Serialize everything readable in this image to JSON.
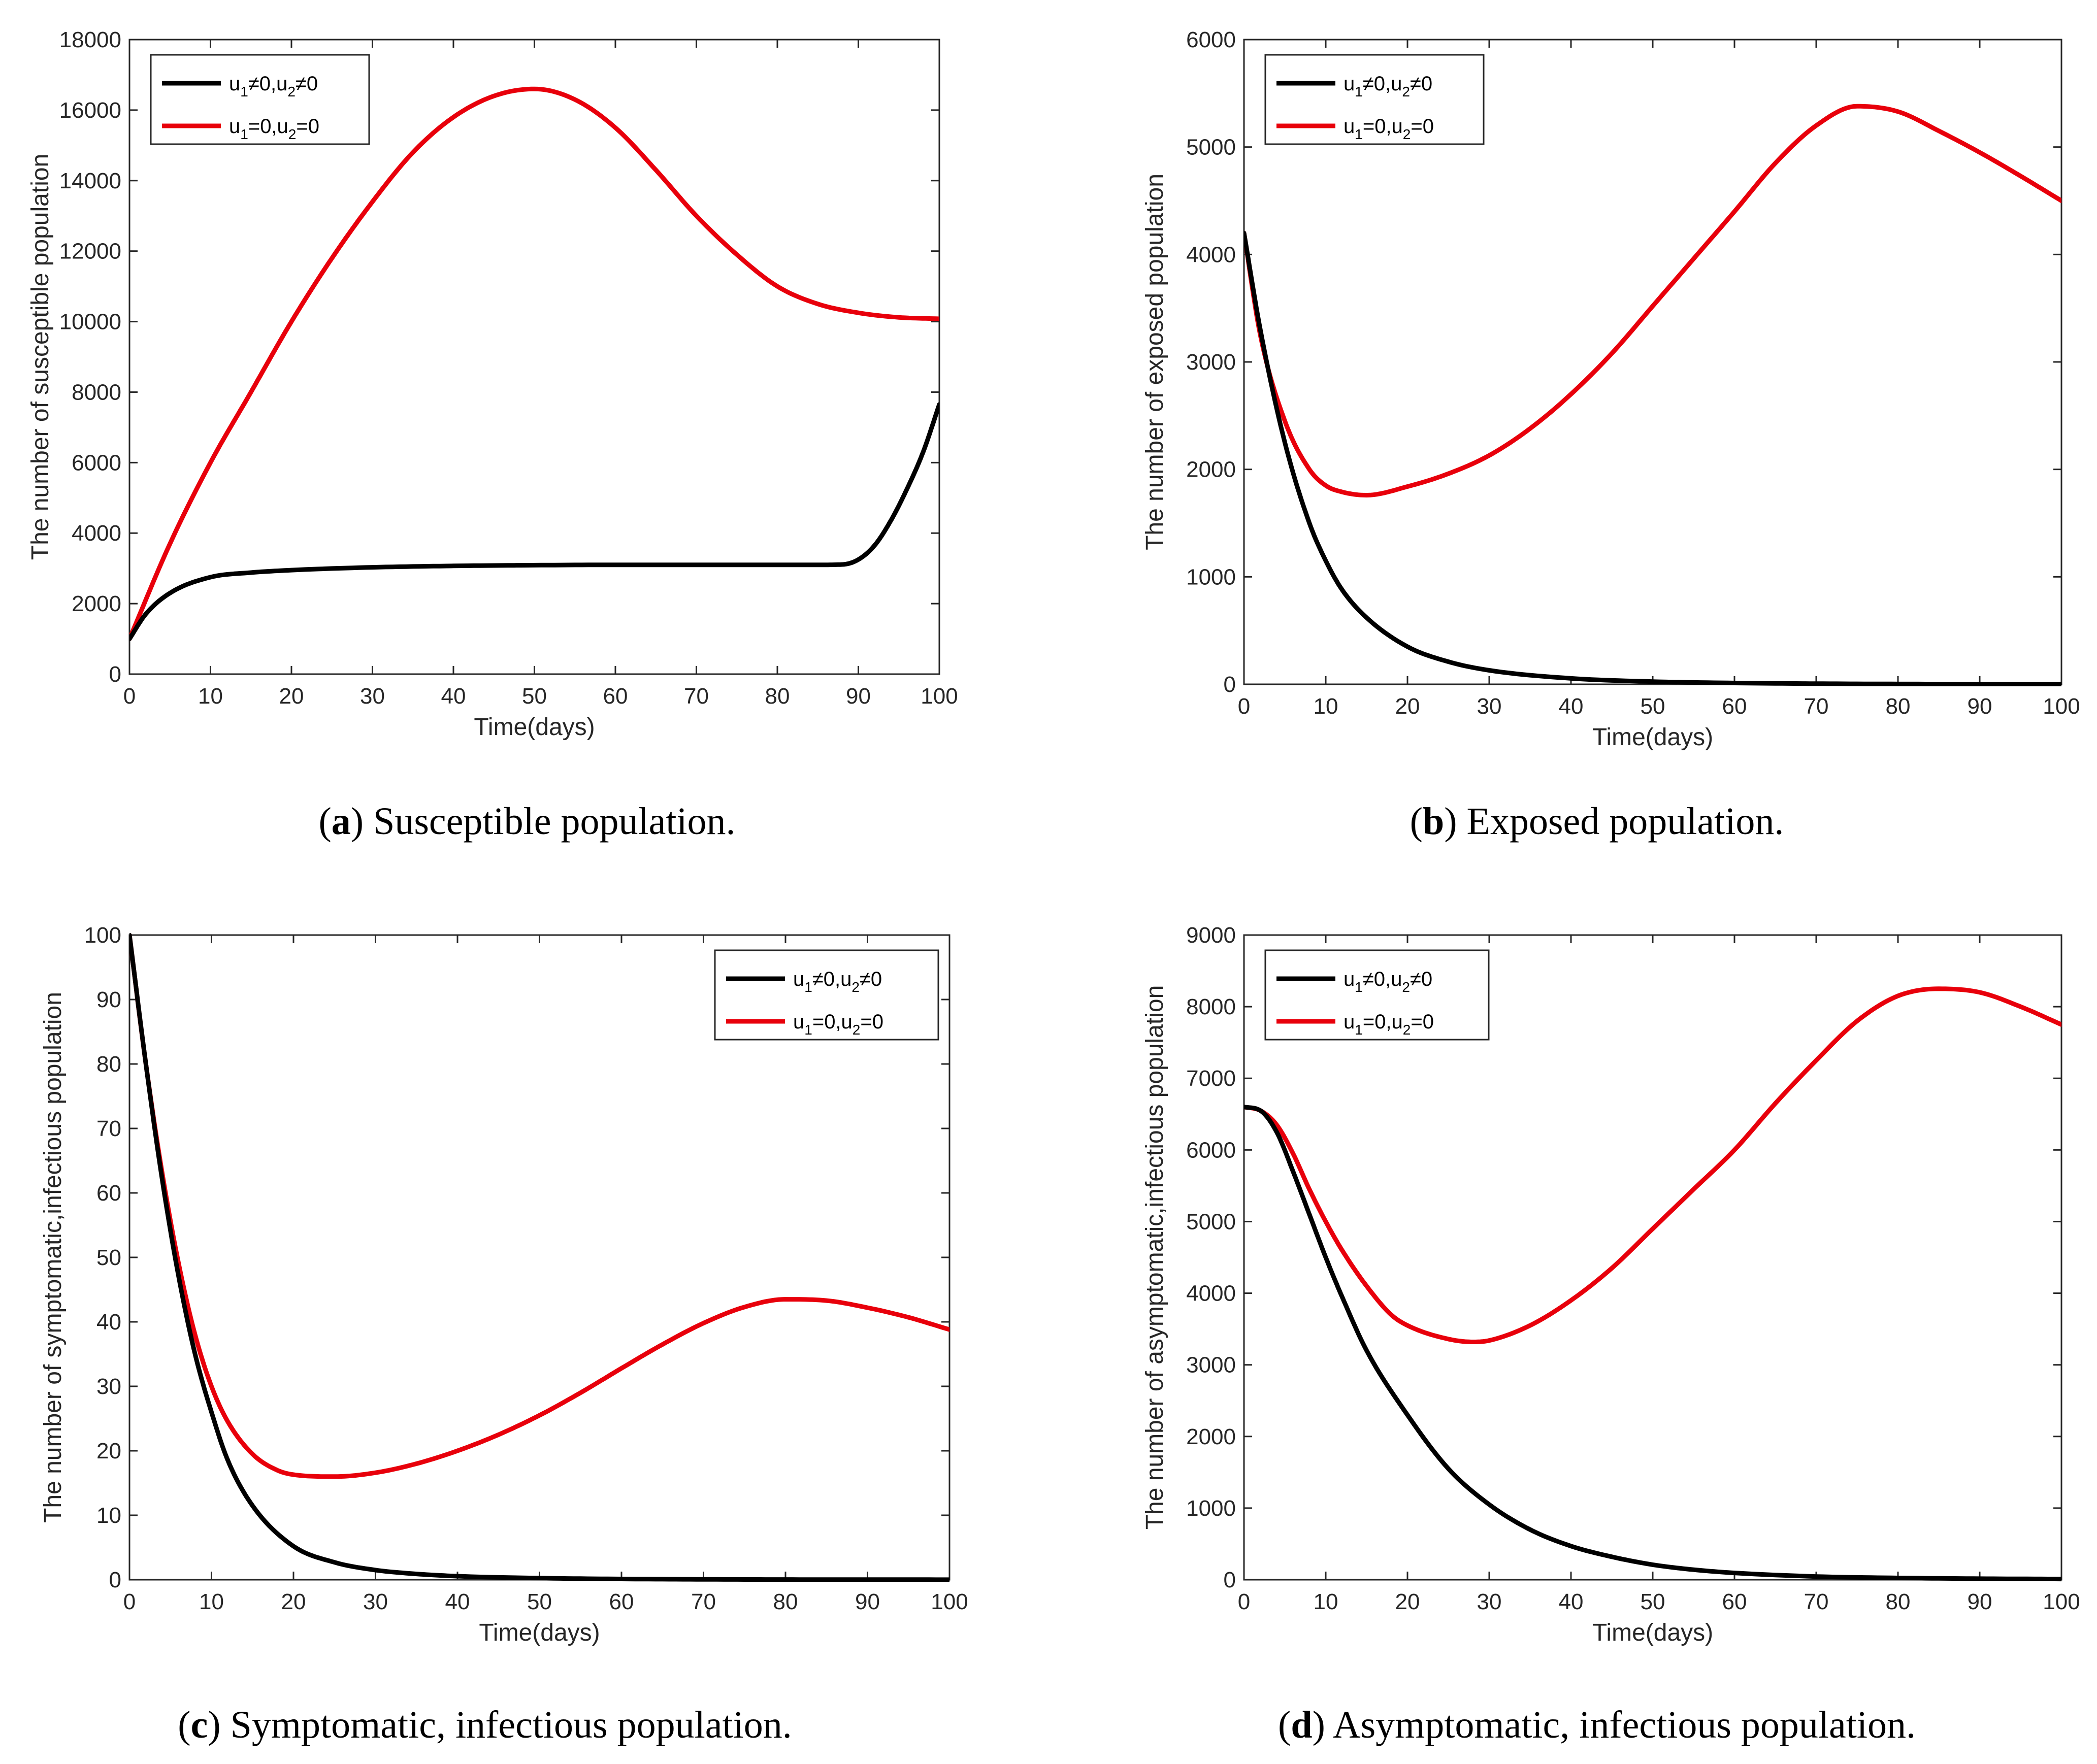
{
  "colors": {
    "controlled": "#000000",
    "uncontrolled": "#e8000b",
    "axis": "#262626"
  },
  "legend_entries": [
    {
      "key": "controlled",
      "u1": "u",
      "s1": "1",
      "op1": "≠",
      "v1": "0,",
      "u2": "u",
      "s2": "2",
      "op2": "≠",
      "v2": "0"
    },
    {
      "key": "uncontrolled",
      "u1": "u",
      "s1": "1",
      "op1": "=",
      "v1": "0,",
      "u2": "u",
      "s2": "2",
      "op2": "=",
      "v2": "0"
    }
  ],
  "chart_data": [
    {
      "id": "a",
      "type": "line",
      "caption_letter": "a",
      "caption_text": "Susceptible population.",
      "xlabel": "Time(days)",
      "ylabel": "The number of susceptible population",
      "xlim": [
        0,
        100
      ],
      "ylim": [
        0,
        18000
      ],
      "xticks": [
        0,
        10,
        20,
        30,
        40,
        50,
        60,
        70,
        80,
        90,
        100
      ],
      "yticks": [
        0,
        2000,
        4000,
        6000,
        8000,
        10000,
        12000,
        14000,
        16000,
        18000
      ],
      "legend_position": "top-left",
      "series": [
        {
          "name": "u1≠0,u2≠0",
          "key": "controlled",
          "x": [
            0,
            2,
            5,
            10,
            15,
            20,
            30,
            40,
            50,
            60,
            70,
            80,
            85,
            88,
            90,
            92,
            94,
            96,
            98,
            100
          ],
          "y": [
            1000,
            1700,
            2300,
            2750,
            2880,
            2950,
            3030,
            3070,
            3090,
            3100,
            3100,
            3100,
            3100,
            3110,
            3250,
            3650,
            4350,
            5250,
            6300,
            7650
          ]
        },
        {
          "name": "u1=0,u2=0",
          "key": "uncontrolled",
          "x": [
            0,
            5,
            10,
            15,
            20,
            25,
            30,
            35,
            40,
            45,
            50,
            55,
            60,
            65,
            70,
            75,
            80,
            85,
            90,
            95,
            100
          ],
          "y": [
            1000,
            3700,
            6000,
            8000,
            10000,
            11800,
            13400,
            14800,
            15800,
            16400,
            16600,
            16300,
            15500,
            14300,
            13000,
            11900,
            11000,
            10500,
            10250,
            10120,
            10080
          ]
        }
      ]
    },
    {
      "id": "b",
      "type": "line",
      "caption_letter": "b",
      "caption_text": "Exposed population.",
      "xlabel": "Time(days)",
      "ylabel": "The number of exposed population",
      "xlim": [
        0,
        100
      ],
      "ylim": [
        0,
        6000
      ],
      "xticks": [
        0,
        10,
        20,
        30,
        40,
        50,
        60,
        70,
        80,
        90,
        100
      ],
      "yticks": [
        0,
        1000,
        2000,
        3000,
        4000,
        5000,
        6000
      ],
      "legend_position": "top-left",
      "series": [
        {
          "name": "u1≠0,u2≠0",
          "key": "controlled",
          "x": [
            0,
            2,
            5,
            8,
            10,
            12,
            15,
            20,
            25,
            30,
            40,
            50,
            60,
            70,
            80,
            90,
            100
          ],
          "y": [
            4200,
            3300,
            2250,
            1500,
            1150,
            880,
            620,
            350,
            210,
            130,
            55,
            25,
            12,
            6,
            3,
            2,
            1
          ]
        },
        {
          "name": "u1=0,u2=0",
          "key": "uncontrolled",
          "x": [
            0,
            2,
            5,
            8,
            10,
            12,
            15,
            20,
            25,
            30,
            35,
            40,
            45,
            50,
            55,
            60,
            65,
            70,
            75,
            80,
            85,
            90,
            95,
            100
          ],
          "y": [
            4200,
            3250,
            2450,
            2000,
            1850,
            1790,
            1760,
            1840,
            1960,
            2130,
            2380,
            2700,
            3080,
            3520,
            3960,
            4400,
            4850,
            5200,
            5380,
            5330,
            5150,
            4950,
            4730,
            4500
          ]
        }
      ]
    },
    {
      "id": "c",
      "type": "line",
      "caption_letter": "c",
      "caption_text": "Symptomatic, infectious population.",
      "xlabel": "Time(days)",
      "ylabel": "The number of symptomatic,infectious population",
      "xlim": [
        0,
        100
      ],
      "ylim": [
        0,
        100
      ],
      "xticks": [
        0,
        10,
        20,
        30,
        40,
        50,
        60,
        70,
        80,
        90,
        100
      ],
      "yticks": [
        0,
        10,
        20,
        30,
        40,
        50,
        60,
        70,
        80,
        90,
        100
      ],
      "legend_position": "top-right",
      "series": [
        {
          "name": "u1≠0,u2≠0",
          "key": "controlled",
          "x": [
            0,
            2,
            4,
            6,
            8,
            10,
            12,
            15,
            20,
            25,
            30,
            35,
            40,
            50,
            60,
            70,
            80,
            90,
            100
          ],
          "y": [
            100,
            80,
            62,
            47,
            35,
            26,
            18.5,
            11.5,
            5.2,
            2.7,
            1.5,
            0.9,
            0.55,
            0.25,
            0.12,
            0.06,
            0.03,
            0.02,
            0.01
          ]
        },
        {
          "name": "u1=0,u2=0",
          "key": "uncontrolled",
          "x": [
            0,
            2,
            4,
            6,
            8,
            10,
            12,
            15,
            18,
            20,
            25,
            30,
            35,
            40,
            45,
            50,
            55,
            60,
            65,
            70,
            75,
            80,
            85,
            90,
            95,
            100
          ],
          "y": [
            100,
            80,
            63,
            49,
            38,
            30,
            24.5,
            19.5,
            17,
            16.3,
            16,
            16.6,
            18,
            20,
            22.5,
            25.5,
            29,
            32.8,
            36.5,
            39.8,
            42.3,
            43.5,
            43.3,
            42.2,
            40.7,
            38.8
          ]
        }
      ]
    },
    {
      "id": "d",
      "type": "line",
      "caption_letter": "d",
      "caption_text": "Asymptomatic, infectious population.",
      "xlabel": "Time(days)",
      "ylabel": "The number of asymptomatic,infectious population",
      "xlim": [
        0,
        100
      ],
      "ylim": [
        0,
        9000
      ],
      "xticks": [
        0,
        10,
        20,
        30,
        40,
        50,
        60,
        70,
        80,
        90,
        100
      ],
      "yticks": [
        0,
        1000,
        2000,
        3000,
        4000,
        5000,
        6000,
        7000,
        8000,
        9000
      ],
      "legend_position": "top-left",
      "series": [
        {
          "name": "u1≠0,u2≠0",
          "key": "controlled",
          "x": [
            0,
            2,
            4,
            6,
            8,
            10,
            12,
            15,
            20,
            25,
            30,
            35,
            40,
            45,
            50,
            55,
            60,
            70,
            80,
            90,
            100
          ],
          "y": [
            6600,
            6550,
            6250,
            5700,
            5100,
            4500,
            3950,
            3200,
            2300,
            1550,
            1050,
            700,
            470,
            320,
            210,
            140,
            95,
            45,
            25,
            15,
            10
          ]
        },
        {
          "name": "u1=0,u2=0",
          "key": "uncontrolled",
          "x": [
            0,
            2,
            4,
            6,
            8,
            10,
            12,
            15,
            18,
            20,
            25,
            28,
            30,
            35,
            40,
            45,
            50,
            55,
            60,
            65,
            70,
            75,
            80,
            85,
            90,
            95,
            100
          ],
          "y": [
            6600,
            6550,
            6350,
            5950,
            5450,
            5000,
            4600,
            4100,
            3700,
            3550,
            3360,
            3320,
            3340,
            3550,
            3900,
            4350,
            4900,
            5450,
            6000,
            6650,
            7250,
            7800,
            8150,
            8250,
            8200,
            8000,
            7750
          ]
        }
      ]
    }
  ]
}
